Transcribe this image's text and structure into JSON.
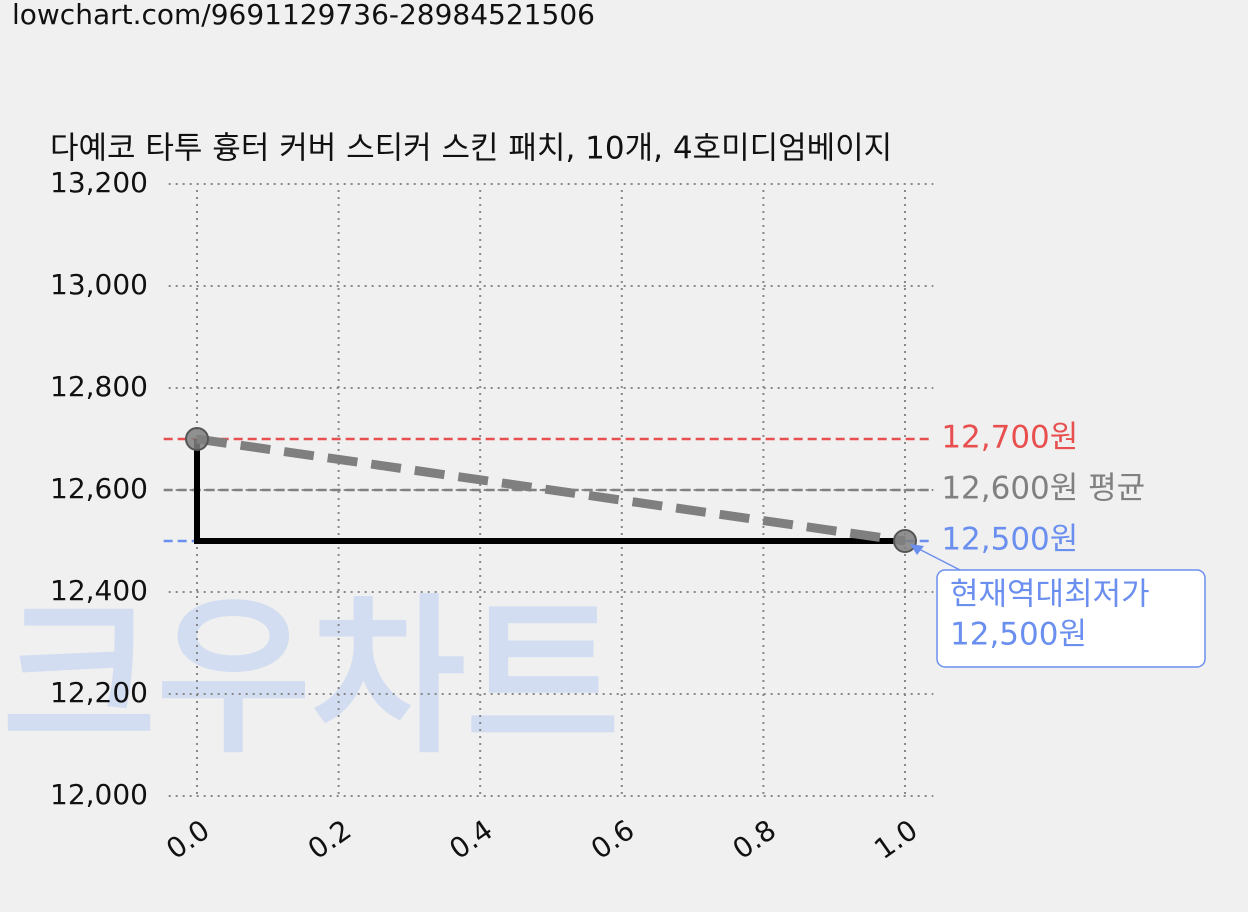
{
  "url": "lowchart.com/9691129736-28984521506",
  "chart_data": {
    "type": "line",
    "title": "다예코 타투 흉터 커버 스티커 스킨 패치, 10개, 4호미디엄베이지",
    "watermark": "크우차트",
    "xlim": [
      -0.04,
      1.04
    ],
    "ylim": [
      12000,
      13200
    ],
    "xticks": [
      {
        "value": 0,
        "label": "0.0"
      },
      {
        "value": 0.2,
        "label": "0.2"
      },
      {
        "value": 0.4,
        "label": "0.4"
      },
      {
        "value": 0.6,
        "label": "0.6"
      },
      {
        "value": 0.8,
        "label": "0.8"
      },
      {
        "value": 1,
        "label": "1.0"
      }
    ],
    "yticks": [
      {
        "value": 12000,
        "label": "12,000"
      },
      {
        "value": 12200,
        "label": "12,200"
      },
      {
        "value": 12400,
        "label": "12,400"
      },
      {
        "value": 12600,
        "label": "12,600"
      },
      {
        "value": 12800,
        "label": "12,800"
      },
      {
        "value": 13000,
        "label": "13,000"
      },
      {
        "value": 13200,
        "label": "13,200"
      }
    ],
    "grid": true,
    "series": [
      {
        "x": [
          0,
          0,
          1
        ],
        "values": [
          12700,
          12500,
          12500
        ],
        "color": "#000000",
        "style": "solid"
      },
      {
        "x": [
          0,
          1
        ],
        "values": [
          12700,
          12500
        ],
        "color": "#7f7f7f",
        "style": "dashed",
        "markers": true
      }
    ],
    "hlines": [
      {
        "value": 12700,
        "label": "12,700원",
        "color": "#e85050"
      },
      {
        "value": 12600,
        "label": "12,600원 평균",
        "color": "#808080"
      },
      {
        "value": 12500,
        "label": "12,500원",
        "color": "#6b8fef"
      }
    ],
    "annotation": {
      "x": 1,
      "y": 12500,
      "lines": [
        "현재역대최저가",
        "12,500원"
      ],
      "color": "#6b8fef"
    }
  }
}
